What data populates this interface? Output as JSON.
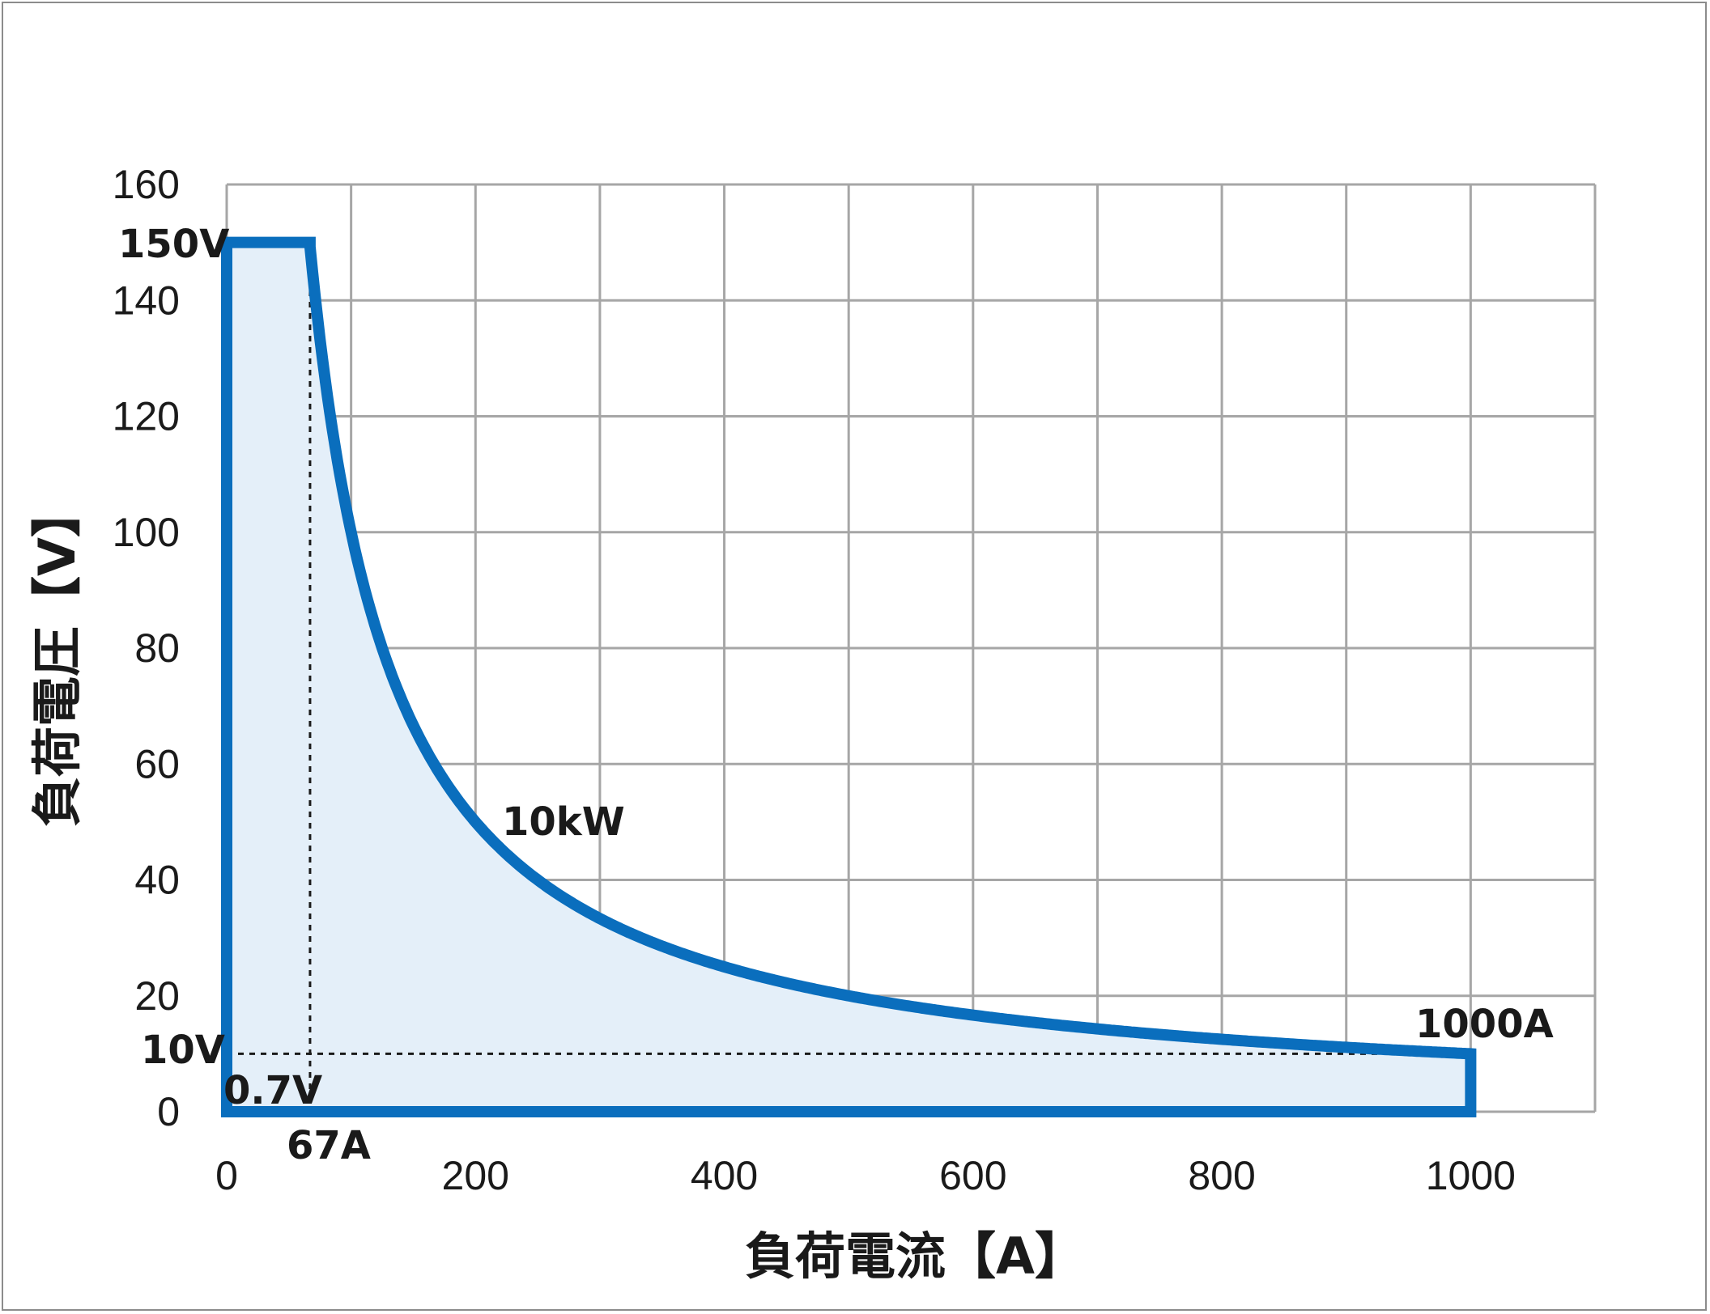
{
  "chart_data": {
    "type": "area",
    "title": "",
    "xlabel": "負荷電流【A】",
    "ylabel": "負荷電圧【V】",
    "xlim": [
      0,
      1100
    ],
    "ylim": [
      0,
      160
    ],
    "x_ticks": [
      0,
      200,
      400,
      600,
      800,
      1000
    ],
    "y_ticks": [
      0,
      20,
      40,
      60,
      80,
      100,
      120,
      140,
      160
    ],
    "x_grid_step": 100,
    "grid": true,
    "legend": "none",
    "line_color": "#0a6ebd",
    "fill_color": "#e4eff9",
    "grid_color": "#a6a6a6",
    "series": [
      {
        "points": [
          [
            0,
            0
          ],
          [
            0,
            150
          ],
          [
            67,
            150
          ],
          [
            67,
            149.25
          ],
          [
            80,
            125
          ],
          [
            100,
            100
          ],
          [
            150,
            66.7
          ],
          [
            200,
            50
          ],
          [
            300,
            33.3
          ],
          [
            400,
            25
          ],
          [
            500,
            20
          ],
          [
            600,
            16.7
          ],
          [
            700,
            14.3
          ],
          [
            800,
            12.5
          ],
          [
            900,
            11.1
          ],
          [
            1000,
            10
          ],
          [
            1000,
            0
          ],
          [
            0,
            0
          ]
        ]
      }
    ],
    "guides": [
      {
        "from": [
          67,
          0
        ],
        "to": [
          67,
          150
        ]
      },
      {
        "from": [
          0,
          10
        ],
        "to": [
          1000,
          10
        ]
      }
    ],
    "annotations": [
      {
        "text": "150V",
        "x": 0,
        "y": 150
      },
      {
        "text": "10V",
        "x": 0,
        "y": 10
      },
      {
        "text": "0.7V",
        "x": 0,
        "y": 0.7
      },
      {
        "text": "67A",
        "x": 67,
        "y": 0
      },
      {
        "text": "10kW",
        "x": 200,
        "y": 50
      },
      {
        "text": "1000A",
        "x": 1000,
        "y": 10
      }
    ]
  }
}
